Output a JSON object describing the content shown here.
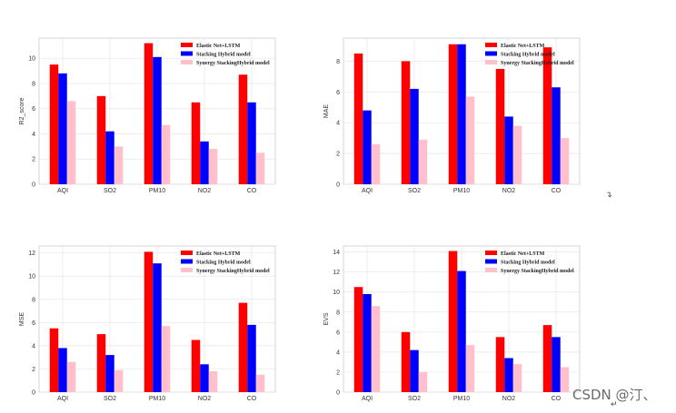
{
  "colors": {
    "series1": "#ff0000",
    "series2": "#0000ff",
    "series3": "#ffc0cb",
    "grid": "#e6e6e6",
    "axis": "#cccccc"
  },
  "watermark": "CSDN @汀、",
  "return_symbol": "↵",
  "chart_data": [
    {
      "type": "bar",
      "ylabel": "R2_score",
      "categories": [
        "AQI",
        "SO2",
        "PM10",
        "NO2",
        "CO"
      ],
      "ylim": [
        0,
        11.6
      ],
      "yticks": [
        0,
        2,
        4,
        6,
        8,
        10
      ],
      "legend_position": "top-right",
      "series": [
        {
          "name": "Elastic Net+LSTM",
          "values": [
            9.5,
            7.0,
            11.2,
            6.5,
            8.7
          ]
        },
        {
          "name": "Stacking Hybrid model",
          "values": [
            8.8,
            4.2,
            10.1,
            3.4,
            6.5
          ]
        },
        {
          "name": "Synergy StackingHybrid model",
          "values": [
            6.6,
            3.0,
            4.7,
            2.8,
            2.5
          ]
        }
      ]
    },
    {
      "type": "bar",
      "ylabel": "MAE",
      "categories": [
        "AQI",
        "SO2",
        "PM10",
        "NO2",
        "CO"
      ],
      "ylim": [
        0,
        9.5
      ],
      "yticks": [
        0,
        2,
        4,
        6,
        8
      ],
      "legend_position": "top-right",
      "series": [
        {
          "name": "Elastic Net+LSTM",
          "values": [
            8.5,
            8.0,
            9.1,
            7.5,
            8.9
          ]
        },
        {
          "name": "Stacking Hybrid model",
          "values": [
            4.8,
            6.2,
            9.1,
            4.4,
            6.3
          ]
        },
        {
          "name": "Synergy StackingHybrid model",
          "values": [
            2.6,
            2.9,
            5.7,
            3.8,
            3.0
          ]
        }
      ]
    },
    {
      "type": "bar",
      "ylabel": "MSE",
      "categories": [
        "AQI",
        "SO2",
        "PM10",
        "NO2",
        "CO"
      ],
      "ylim": [
        0,
        12.6
      ],
      "yticks": [
        0,
        2,
        4,
        6,
        8,
        10,
        12
      ],
      "legend_position": "top-right",
      "series": [
        {
          "name": "Elastic Net+LSTM",
          "values": [
            5.5,
            5.0,
            12.1,
            4.5,
            7.7
          ]
        },
        {
          "name": "Stacking Hybrid model",
          "values": [
            3.8,
            3.2,
            11.1,
            2.4,
            5.8
          ]
        },
        {
          "name": "Synergy StackingHybrid model",
          "values": [
            2.6,
            1.9,
            5.7,
            1.8,
            1.5
          ]
        }
      ]
    },
    {
      "type": "bar",
      "ylabel": "EVS",
      "categories": [
        "AQI",
        "SO2",
        "PM10",
        "NO2",
        "CO"
      ],
      "ylim": [
        0,
        14.6
      ],
      "yticks": [
        0,
        2,
        4,
        6,
        8,
        10,
        12,
        14
      ],
      "legend_position": "top-right",
      "series": [
        {
          "name": "Elastic Net+LSTM",
          "values": [
            10.5,
            6.0,
            14.1,
            5.5,
            6.7
          ]
        },
        {
          "name": "Stacking Hybrid model",
          "values": [
            9.8,
            4.2,
            12.1,
            3.4,
            5.5
          ]
        },
        {
          "name": "Synergy StackingHybrid model",
          "values": [
            8.6,
            2.0,
            4.7,
            2.8,
            2.5
          ]
        }
      ]
    }
  ]
}
